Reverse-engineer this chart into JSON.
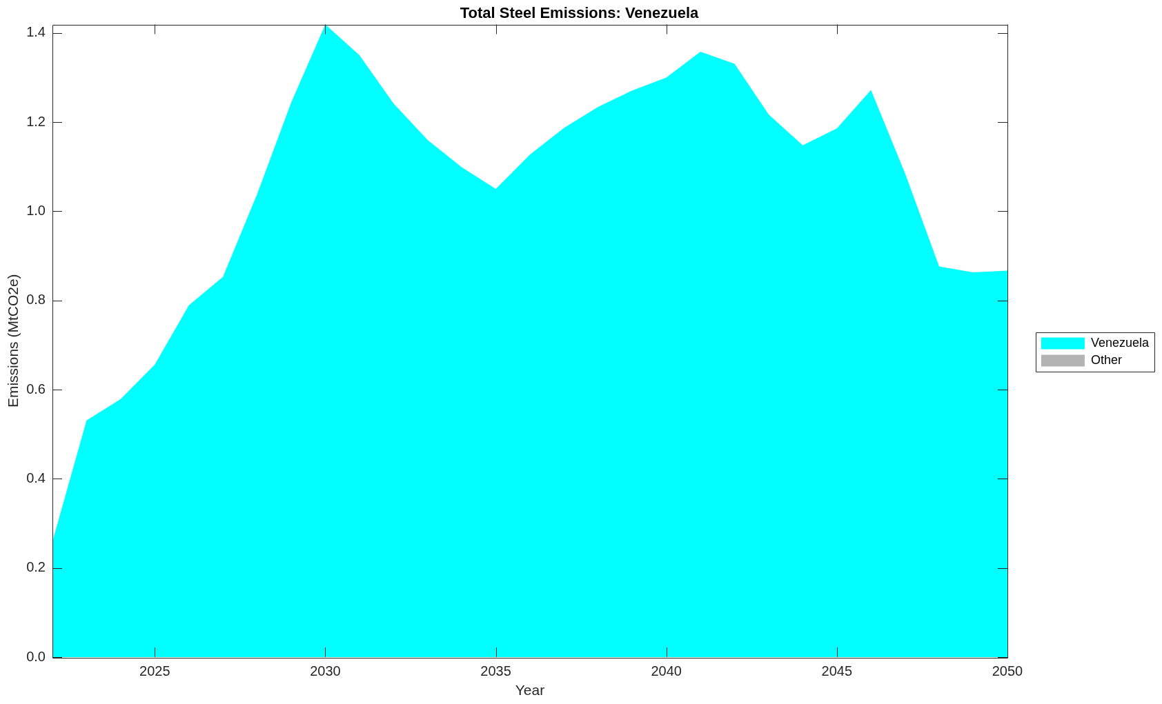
{
  "chart_data": {
    "type": "area",
    "title": "Total Steel Emissions: Venezuela",
    "xlabel": "Year",
    "ylabel": "Emissions (MtCO2e)",
    "x": [
      2022,
      2023,
      2024,
      2025,
      2026,
      2027,
      2028,
      2029,
      2030,
      2031,
      2032,
      2033,
      2034,
      2035,
      2036,
      2037,
      2038,
      2039,
      2040,
      2041,
      2042,
      2043,
      2044,
      2045,
      2046,
      2047,
      2048,
      2049,
      2050
    ],
    "series": [
      {
        "name": "Venezuela",
        "color": "#00ffff",
        "values": [
          0.259,
          0.531,
          0.579,
          0.656,
          0.789,
          0.853,
          1.038,
          1.244,
          1.419,
          1.35,
          1.242,
          1.16,
          1.099,
          1.05,
          1.127,
          1.187,
          1.234,
          1.271,
          1.3,
          1.358,
          1.331,
          1.217,
          1.148,
          1.186,
          1.272,
          1.085,
          0.876,
          0.863,
          0.867
        ]
      },
      {
        "name": "Other",
        "color": "#b3b3b3",
        "values": [
          null,
          null,
          null,
          null,
          null,
          null,
          null,
          null,
          null,
          null,
          null,
          null,
          null,
          null,
          null,
          null,
          null,
          null,
          null,
          null,
          null,
          null,
          null,
          null,
          null,
          null,
          null,
          null,
          null
        ]
      }
    ],
    "xlim": [
      2022,
      2050
    ],
    "xticks": [
      2025,
      2030,
      2035,
      2040,
      2045,
      2050
    ],
    "ylim": [
      0,
      1.419
    ],
    "yticks": [
      {
        "value": 0,
        "label": "0.0"
      },
      0.2,
      0.4,
      0.6,
      0.8,
      {
        "value": 1,
        "label": "1.0"
      },
      1.2,
      1.4
    ],
    "grid": false,
    "legend": "right"
  }
}
